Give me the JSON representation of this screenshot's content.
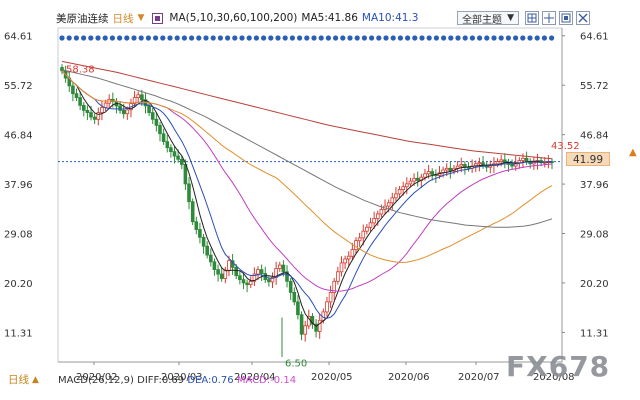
{
  "header": {
    "symbol": "美原油连续",
    "period": "日线",
    "ma_params": "MA(5,10,30,60,100,200)",
    "ma5": "MA5:41.86",
    "ma10": "MA10:41.3"
  },
  "toolbar": {
    "theme_label": "全部主题",
    "buttons": [
      "grid-icon",
      "crosshair-icon",
      "zoom-icon",
      "close-icon"
    ]
  },
  "price_tag": "41.99",
  "watermark": "FX678",
  "bottom": {
    "period": "日线",
    "macd_label": "MACD(26,12,9) DIFF:0.69",
    "dea": "DEA:0.76",
    "macd_val": "MACD:-0.14"
  },
  "colors": {
    "up": "#d93a2f",
    "down": "#2f8a3a",
    "ma5": "#222222",
    "ma10": "#2a4fb7",
    "ma30": "#c040c0",
    "ma60": "#e0902c",
    "ma100": "#777777",
    "ma200": "#b8403a",
    "dots": "#2a5fb7",
    "price_line": "#2a5fb7"
  },
  "chart_data": {
    "type": "candlestick",
    "yticks": [
      "64.61",
      "55.72",
      "46.84",
      "37.96",
      "29.08",
      "20.20",
      "11.31"
    ],
    "xticks": [
      "2020/02",
      "2020/03",
      "2020/04",
      "2020/05",
      "2020/06",
      "2020/07",
      "2020/08"
    ],
    "ylim": [
      6,
      66
    ],
    "annotations": {
      "high": "58.38",
      "low": "6.50",
      "recent_high": "43.52"
    },
    "current_price": 41.99,
    "closes": [
      58.3,
      57.0,
      55.6,
      54.2,
      53.5,
      52.1,
      51.2,
      50.8,
      50.0,
      49.6,
      50.8,
      51.7,
      52.5,
      53.2,
      52.8,
      52.0,
      51.2,
      50.6,
      51.3,
      52.4,
      53.5,
      54.0,
      53.1,
      52.0,
      50.8,
      49.6,
      48.5,
      47.0,
      45.6,
      44.5,
      43.8,
      43.0,
      42.4,
      41.5,
      38.0,
      34.8,
      31.2,
      29.8,
      28.4,
      26.8,
      25.2,
      24.0,
      22.6,
      21.8,
      21.0,
      22.5,
      24.2,
      23.0,
      21.5,
      20.8,
      20.2,
      19.9,
      20.5,
      21.8,
      22.6,
      21.9,
      20.8,
      20.4,
      21.2,
      22.8,
      23.4,
      22.2,
      20.5,
      18.5,
      16.8,
      14.5,
      11.0,
      12.5,
      14.2,
      12.8,
      11.5,
      13.5,
      15.0,
      16.8,
      18.5,
      20.5,
      22.2,
      23.8,
      24.5,
      25.0,
      26.2,
      27.8,
      28.3,
      29.5,
      30.2,
      31.0,
      31.8,
      32.6,
      33.4,
      34.0,
      34.6,
      35.5,
      36.2,
      37.0,
      37.5,
      38.0,
      38.5,
      39.0,
      38.6,
      39.2,
      39.8,
      40.2,
      39.7,
      39.5,
      40.0,
      40.5,
      40.8,
      40.3,
      40.8,
      41.2,
      41.5,
      41.0,
      40.8,
      41.2,
      41.6,
      41.8,
      41.3,
      41.0,
      41.3,
      41.6,
      42.0,
      42.3,
      41.9,
      41.5,
      41.2,
      41.8,
      42.2,
      42.6,
      42.0,
      41.6,
      41.9,
      42.2,
      41.8,
      41.9,
      42.0,
      41.99
    ],
    "ma100": [
      58.5,
      58.2,
      57.9,
      57.6,
      57.3,
      57.0,
      56.6,
      56.2,
      55.8,
      55.4,
      55.0,
      54.6,
      54.2,
      53.8,
      53.3,
      52.9,
      52.4,
      51.8,
      51.2,
      50.6,
      50.0,
      49.3,
      48.6,
      47.9,
      47.2,
      46.5,
      45.8,
      45.1,
      44.4,
      43.7,
      43.0,
      42.3,
      41.6,
      40.9,
      40.2,
      39.5,
      38.8,
      38.1,
      37.4,
      36.8,
      36.2,
      35.6,
      35.0,
      34.5,
      34.0,
      33.6,
      33.2,
      32.8,
      32.5,
      32.2,
      31.9,
      31.6,
      31.4,
      31.2,
      31.0,
      30.8,
      30.6,
      30.5,
      30.4,
      30.3,
      30.2,
      30.2,
      30.2,
      30.3,
      30.4,
      30.6,
      30.9,
      31.3,
      31.7
    ],
    "ma200": [
      60.0,
      59.6,
      59.2,
      58.8,
      58.4,
      58.0,
      57.5,
      57.0,
      56.5,
      56.0,
      55.5,
      55.0,
      54.5,
      54.0,
      53.5,
      53.0,
      52.5,
      52.0,
      51.5,
      51.0,
      50.5,
      50.0,
      49.5,
      49.0,
      48.5,
      48.1,
      47.7,
      47.3,
      46.9,
      46.5,
      46.1,
      45.7,
      45.4,
      45.1,
      44.8,
      44.5,
      44.2,
      43.9,
      43.7,
      43.5,
      43.3,
      43.1,
      42.9,
      42.7,
      42.5
    ]
  }
}
